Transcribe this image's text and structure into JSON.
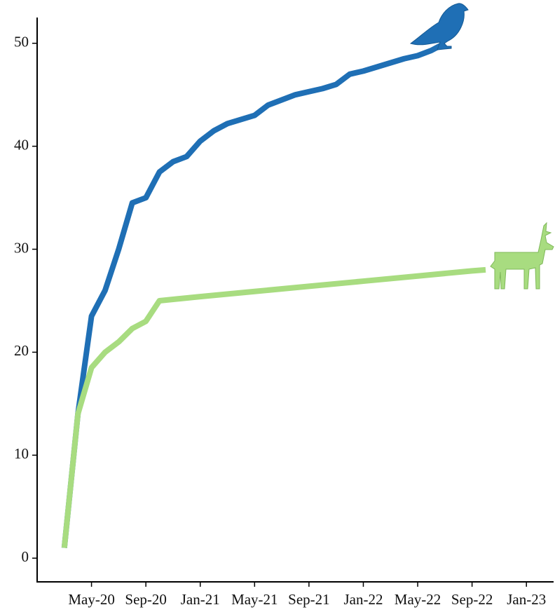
{
  "chart_data": {
    "type": "line",
    "xlim": [
      "2020-01",
      "2023-03"
    ],
    "ylim": [
      -2.3,
      52.5
    ],
    "yticks": [
      0,
      10,
      20,
      30,
      40,
      50
    ],
    "xticks": [
      {
        "value": "2020-05",
        "label": "May-20"
      },
      {
        "value": "2020-09",
        "label": "Sep-20"
      },
      {
        "value": "2021-01",
        "label": "Jan-21"
      },
      {
        "value": "2021-05",
        "label": "May-21"
      },
      {
        "value": "2021-09",
        "label": "Sep-21"
      },
      {
        "value": "2022-01",
        "label": "Jan-22"
      },
      {
        "value": "2022-05",
        "label": "May-22"
      },
      {
        "value": "2022-09",
        "label": "Sep-22"
      },
      {
        "value": "2023-01",
        "label": "Jan-23"
      }
    ],
    "series": [
      {
        "color": "#1f6fb5",
        "x": [
          "2020-03",
          "2020-04",
          "2020-05",
          "2020-06",
          "2020-07",
          "2020-08",
          "2020-09",
          "2020-10",
          "2020-11",
          "2020-12",
          "2021-01",
          "2021-02",
          "2021-03",
          "2021-04",
          "2021-05",
          "2021-06",
          "2021-07",
          "2021-08",
          "2021-09",
          "2021-10",
          "2021-11",
          "2021-12",
          "2022-01",
          "2022-02",
          "2022-03",
          "2022-04",
          "2022-05",
          "2022-06",
          "2022-07"
        ],
        "values": [
          1,
          14,
          23.5,
          26,
          30,
          34.5,
          35,
          37.5,
          38.5,
          39,
          40.5,
          41.5,
          42.2,
          42.6,
          43,
          44,
          44.5,
          45,
          45.3,
          45.6,
          46,
          47,
          47.3,
          47.7,
          48.1,
          48.5,
          48.8,
          49.3,
          50
        ]
      },
      {
        "color": "#a8dc80",
        "x": [
          "2020-03",
          "2020-04",
          "2020-05",
          "2020-06",
          "2020-07",
          "2020-08",
          "2020-09",
          "2020-10",
          "2021-01",
          "2021-05",
          "2021-09",
          "2022-01",
          "2022-05",
          "2022-09",
          "2022-10"
        ],
        "values": [
          1,
          14,
          18.5,
          20,
          21,
          22.3,
          23,
          25,
          25.4,
          25.9,
          26.4,
          26.9,
          27.4,
          27.9,
          28
        ]
      }
    ]
  }
}
